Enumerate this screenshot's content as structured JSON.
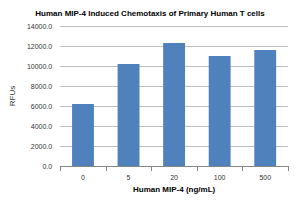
{
  "chart_data": {
    "type": "bar",
    "title": "Human MIP-4 Induced Chemotaxis of Primary Human T cells",
    "x_label": "Human MIP-4 (ng/mL)",
    "y_label": "RFUs",
    "categories": [
      "0",
      "5",
      "20",
      "100",
      "500"
    ],
    "values": [
      6200,
      10200,
      12300,
      11000,
      11600
    ],
    "color": "#4f81bd",
    "ylim": [
      0,
      14000
    ],
    "yticks": [
      {
        "value": 0,
        "label": "0.0"
      },
      {
        "value": 2000,
        "label": "2000.0"
      },
      {
        "value": 4000,
        "label": "4000.0"
      },
      {
        "value": 6000,
        "label": "6000.0"
      },
      {
        "value": 8000,
        "label": "8000.0"
      },
      {
        "value": 10000,
        "label": "10000.0"
      },
      {
        "value": 12000,
        "label": "12000.0"
      },
      {
        "value": 14000,
        "label": "14000.0"
      }
    ],
    "grid": true
  }
}
